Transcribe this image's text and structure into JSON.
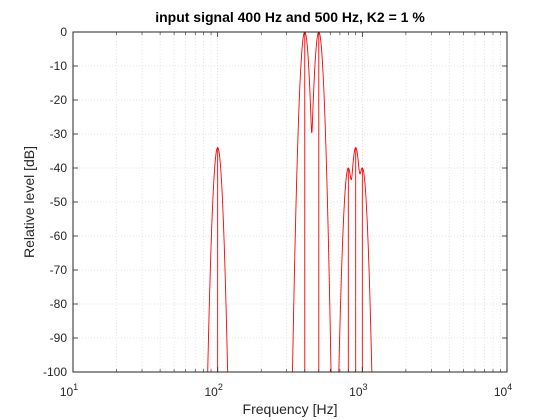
{
  "chart_data": {
    "type": "line",
    "title": "input signal 400 Hz and 500 Hz, K2 = 1 %",
    "xlabel": "Frequency [Hz]",
    "ylabel": "Relative level [dB]",
    "xscale": "log",
    "xlim": [
      10,
      10000
    ],
    "ylim": [
      -100,
      0
    ],
    "xticks": [
      10,
      100,
      1000,
      10000
    ],
    "xtick_labels": [
      {
        "base": "10",
        "exp": "1"
      },
      {
        "base": "10",
        "exp": "2"
      },
      {
        "base": "10",
        "exp": "3"
      },
      {
        "base": "10",
        "exp": "4"
      }
    ],
    "yticks": [
      0,
      -10,
      -20,
      -30,
      -40,
      -50,
      -60,
      -70,
      -80,
      -90,
      -100
    ],
    "ytick_labels": [
      "0",
      "-10",
      "-20",
      "-30",
      "-40",
      "-50",
      "-60",
      "-70",
      "-80",
      "-90",
      "-100"
    ],
    "grid": true,
    "minor_grid": true,
    "line_color": "#ff0000",
    "peaks": [
      {
        "x": 100,
        "y": -34
      },
      {
        "x": 400,
        "y": 0
      },
      {
        "x": 500,
        "y": 0
      },
      {
        "x": 800,
        "y": -40
      },
      {
        "x": 900,
        "y": -34
      },
      {
        "x": 1000,
        "y": -40
      }
    ]
  }
}
